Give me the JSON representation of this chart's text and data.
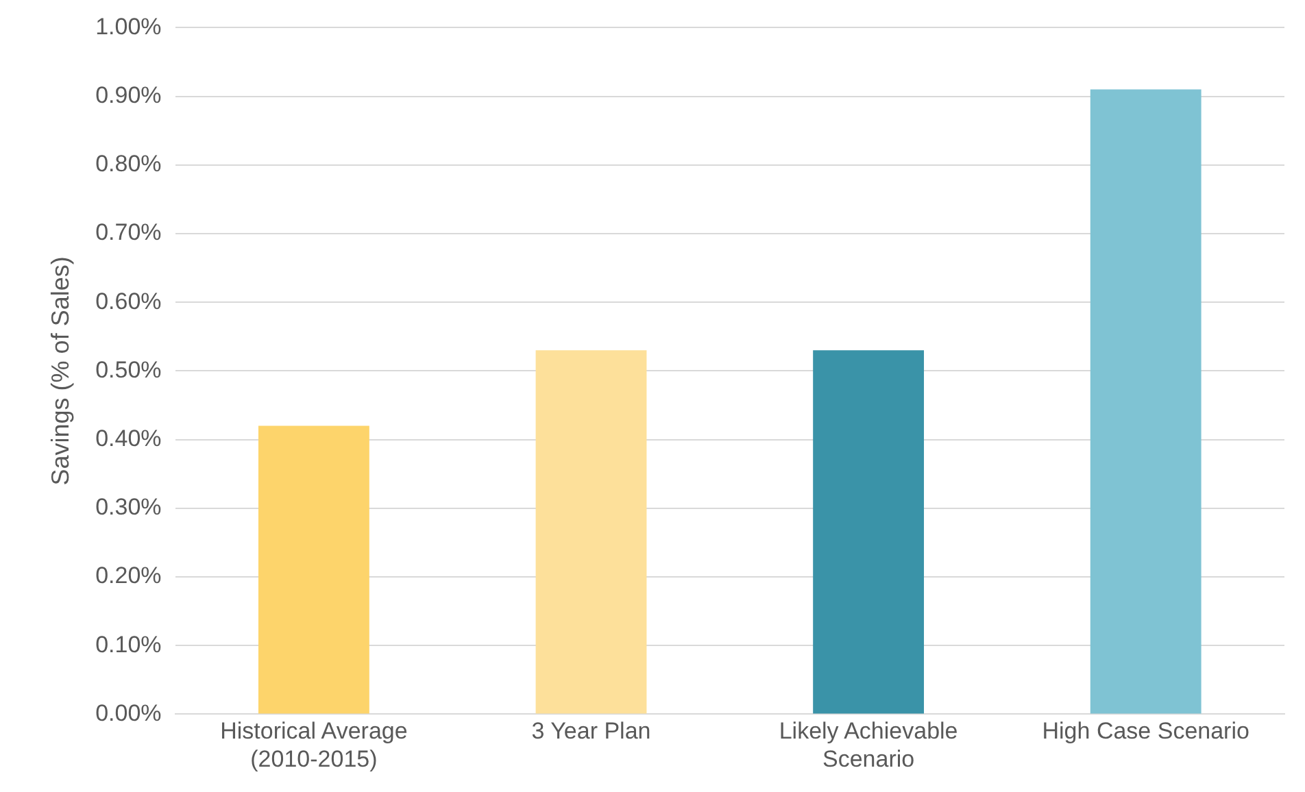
{
  "chart_data": {
    "type": "bar",
    "ylabel": "Savings (% of Sales)",
    "categories": [
      "Historical Average (2010-2015)",
      "3 Year Plan",
      "Likely Achievable Scenario",
      "High Case Scenario"
    ],
    "values": [
      0.42,
      0.53,
      0.53,
      0.91
    ],
    "colors": [
      "#fdd46b",
      "#fde09a",
      "#3a93a8",
      "#7fc3d3"
    ],
    "ylim": [
      0,
      1
    ],
    "yticks": [
      {
        "value": 0,
        "label": "0.00%"
      },
      {
        "value": 0.1,
        "label": "0.10%"
      },
      {
        "value": 0.2,
        "label": "0.20%"
      },
      {
        "value": 0.3,
        "label": "0.30%"
      },
      {
        "value": 0.4,
        "label": "0.40%"
      },
      {
        "value": 0.5,
        "label": "0.50%"
      },
      {
        "value": 0.6,
        "label": "0.60%"
      },
      {
        "value": 0.7,
        "label": "0.70%"
      },
      {
        "value": 0.8,
        "label": "0.80%"
      },
      {
        "value": 0.9,
        "label": "0.90%"
      },
      {
        "value": 1,
        "label": "1.00%"
      }
    ],
    "grid": "y",
    "legend": false
  }
}
